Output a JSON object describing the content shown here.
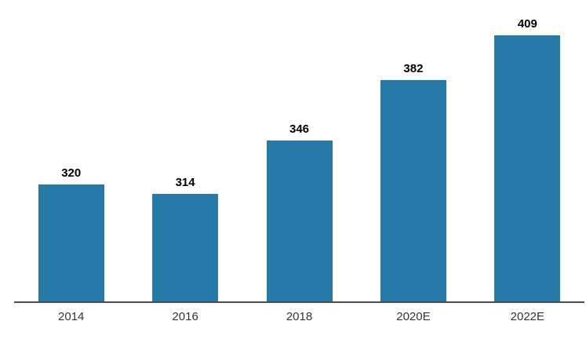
{
  "chart_data": {
    "type": "bar",
    "title": "",
    "xlabel": "",
    "ylabel": "",
    "categories": [
      "2014",
      "2016",
      "2018",
      "2020E",
      "2022E"
    ],
    "values": [
      320,
      314,
      346,
      382,
      409
    ],
    "ylim": [
      250,
      430
    ],
    "grid": false,
    "legend": "none",
    "bar_color": "#2779A7",
    "axis_line_color": "#4A4A4A",
    "value_label_color": "#000000",
    "tick_label_color": "#333333",
    "background_color": "#FFFFFF"
  }
}
